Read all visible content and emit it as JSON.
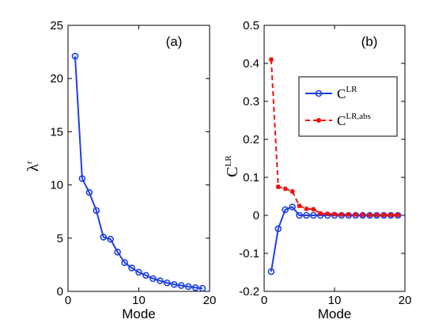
{
  "chart_data": [
    {
      "type": "line",
      "panel_label": "(a)",
      "xlabel": "Mode",
      "ylabel_base": "λ",
      "ylabel_sup": "r",
      "xlim": [
        0,
        20
      ],
      "ylim": [
        0,
        25
      ],
      "xticks": [
        0,
        10,
        20
      ],
      "yticks": [
        0,
        5,
        10,
        15,
        20,
        25
      ],
      "series": [
        {
          "color": "#2040e0",
          "marker": "circle",
          "linestyle": "solid",
          "x": [
            1,
            2,
            3,
            4,
            5,
            6,
            7,
            8,
            9,
            10,
            11,
            12,
            13,
            14,
            15,
            16,
            17,
            18,
            19
          ],
          "values": [
            22.1,
            10.6,
            9.3,
            7.6,
            5.1,
            4.9,
            3.7,
            2.7,
            2.2,
            1.8,
            1.5,
            1.2,
            1.0,
            0.8,
            0.65,
            0.55,
            0.45,
            0.35,
            0.28
          ]
        }
      ]
    },
    {
      "type": "line",
      "panel_label": "(b)",
      "xlabel": "Mode",
      "ylabel_base": "C",
      "ylabel_sup": "LR",
      "xlim": [
        0,
        20
      ],
      "ylim": [
        -0.2,
        0.5
      ],
      "xticks": [
        0,
        10,
        20
      ],
      "yticks": [
        -0.2,
        -0.1,
        0,
        0.1,
        0.2,
        0.3,
        0.4,
        0.5
      ],
      "legend_position": "upper-right",
      "series": [
        {
          "name_base": "C",
          "name_sup": "LR",
          "color": "#2040e0",
          "marker": "circle",
          "linestyle": "solid",
          "x": [
            1,
            2,
            3,
            4,
            5,
            6,
            7,
            8,
            9,
            10,
            11,
            12,
            13,
            14,
            15,
            16,
            17,
            18,
            19
          ],
          "values": [
            -0.148,
            -0.035,
            0.015,
            0.022,
            0.0,
            0.0,
            0.0,
            0.0,
            0.0,
            0.0,
            0.0,
            0.0,
            0.0,
            0.0,
            0.0,
            0.0,
            0.0,
            0.0,
            0.0
          ]
        },
        {
          "name_base": "C",
          "name_sup": "LR,abs",
          "color": "#ee1111",
          "marker": "star",
          "linestyle": "dashed",
          "x": [
            1,
            2,
            3,
            4,
            5,
            6,
            7,
            8,
            9,
            10,
            11,
            12,
            13,
            14,
            15,
            16,
            17,
            18,
            19
          ],
          "values": [
            0.41,
            0.075,
            0.07,
            0.063,
            0.025,
            0.017,
            0.016,
            0.005,
            0.004,
            0.003,
            0.002,
            0.002,
            0.002,
            0.001,
            0.001,
            0.001,
            0.001,
            0.001,
            0.001
          ]
        }
      ]
    }
  ]
}
